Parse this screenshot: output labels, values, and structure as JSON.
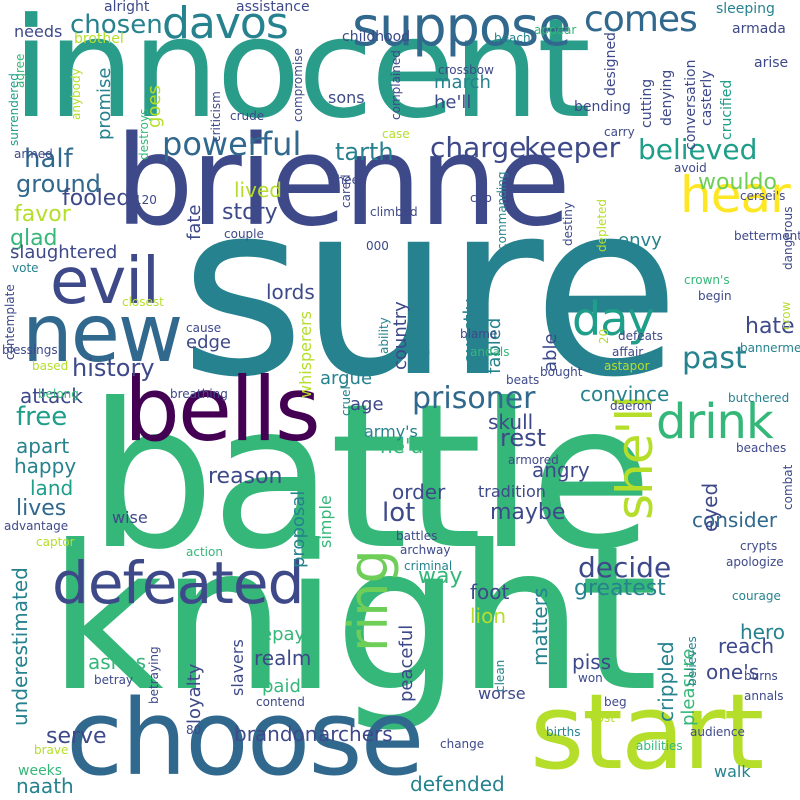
{
  "palette": {
    "dark_purple": "#440154",
    "indigo": "#3e4989",
    "steel_blue": "#31688e",
    "teal": "#26828e",
    "sea_green": "#1f9e89",
    "green": "#35b779",
    "lime": "#6ece58",
    "yellow_green": "#b5de2b",
    "yellow": "#fde725"
  },
  "words": [
    {
      "text": "sure",
      "color": "#26828e"
    },
    {
      "text": "battle",
      "color": "#35b779"
    },
    {
      "text": "knight",
      "color": "#35b779"
    },
    {
      "text": "innocent",
      "color": "#2a9d8a"
    },
    {
      "text": "brienne",
      "color": "#3e4989"
    },
    {
      "text": "choose",
      "color": "#31688e"
    },
    {
      "text": "start",
      "color": "#b5de2b"
    },
    {
      "text": "bells",
      "color": "#440154"
    },
    {
      "text": "defeated",
      "color": "#3e4989"
    },
    {
      "text": "new",
      "color": "#31688e"
    },
    {
      "text": "suppose",
      "color": "#31688e"
    },
    {
      "text": "evil",
      "color": "#3e4989"
    },
    {
      "text": "ring",
      "color": "#6ece58"
    },
    {
      "text": "davos",
      "color": "#26828e"
    },
    {
      "text": "hear",
      "color": "#fde725"
    },
    {
      "text": "drink",
      "color": "#35b779"
    },
    {
      "text": "she'll",
      "color": "#b5de2b"
    },
    {
      "text": "day",
      "color": "#1f9e89"
    },
    {
      "text": "comes",
      "color": "#31688e"
    },
    {
      "text": "powerful",
      "color": "#31688e"
    },
    {
      "text": "believed",
      "color": "#1f9e89"
    },
    {
      "text": "charge",
      "color": "#3e4989"
    },
    {
      "text": "keeper",
      "color": "#3e4989"
    },
    {
      "text": "prisoner",
      "color": "#31688e"
    },
    {
      "text": "past",
      "color": "#26828e"
    },
    {
      "text": "decide",
      "color": "#3e4989"
    },
    {
      "text": "history",
      "color": "#3e4989"
    },
    {
      "text": "half",
      "color": "#31688e"
    },
    {
      "text": "ground",
      "color": "#31688e"
    },
    {
      "text": "free",
      "color": "#1f9e89"
    },
    {
      "text": "chosen",
      "color": "#26828e"
    },
    {
      "text": "tarth",
      "color": "#26828e"
    },
    {
      "text": "story",
      "color": "#3e4989"
    },
    {
      "text": "lot",
      "color": "#3e4989"
    },
    {
      "text": "rest",
      "color": "#3e4989"
    },
    {
      "text": "hate",
      "color": "#3e4989"
    },
    {
      "text": "wouldo",
      "color": "#6ece58"
    },
    {
      "text": "favor",
      "color": "#b5de2b"
    },
    {
      "text": "glad",
      "color": "#35b779"
    },
    {
      "text": "fooled",
      "color": "#3e4989"
    },
    {
      "text": "reason",
      "color": "#3e4989"
    },
    {
      "text": "lives",
      "color": "#31688e"
    },
    {
      "text": "maybe",
      "color": "#3e4989"
    },
    {
      "text": "consider",
      "color": "#31688e"
    },
    {
      "text": "way",
      "color": "#35b779"
    },
    {
      "text": "greatest",
      "color": "#26828e"
    },
    {
      "text": "serve",
      "color": "#3e4989"
    },
    {
      "text": "brandon",
      "color": "#3e4989"
    },
    {
      "text": "archers",
      "color": "#3e4989"
    },
    {
      "text": "defended",
      "color": "#26828e"
    },
    {
      "text": "naath",
      "color": "#26828e"
    },
    {
      "text": "realm",
      "color": "#3e4989"
    },
    {
      "text": "piss",
      "color": "#3e4989"
    },
    {
      "text": "ashes",
      "color": "#35b779"
    },
    {
      "text": "underestimated",
      "color": "#26828e"
    },
    {
      "text": "matters",
      "color": "#26828e"
    },
    {
      "text": "crippled",
      "color": "#26828e"
    },
    {
      "text": "reach",
      "color": "#3e4989"
    },
    {
      "text": "hero",
      "color": "#26828e"
    },
    {
      "text": "one's",
      "color": "#3e4989"
    },
    {
      "text": "eyed",
      "color": "#3e4989"
    },
    {
      "text": "lion",
      "color": "#b5de2b"
    },
    {
      "text": "foot",
      "color": "#3e4989"
    },
    {
      "text": "attack",
      "color": "#3e4989"
    },
    {
      "text": "apart",
      "color": "#26828e"
    },
    {
      "text": "happy",
      "color": "#26828e"
    },
    {
      "text": "land",
      "color": "#1f9e89"
    },
    {
      "text": "convince",
      "color": "#26828e"
    },
    {
      "text": "angry",
      "color": "#3e4989"
    },
    {
      "text": "order",
      "color": "#3e4989"
    },
    {
      "text": "he'd",
      "color": "#35b779"
    },
    {
      "text": "skull",
      "color": "#3e4989"
    },
    {
      "text": "age",
      "color": "#3e4989"
    },
    {
      "text": "lords",
      "color": "#3e4989"
    },
    {
      "text": "edge",
      "color": "#3e4989"
    },
    {
      "text": "country",
      "color": "#3e4989"
    },
    {
      "text": "signal",
      "color": "#26828e"
    },
    {
      "text": "exactly",
      "color": "#26828e"
    },
    {
      "text": "fabled",
      "color": "#26828e"
    },
    {
      "text": "able",
      "color": "#3e4989"
    },
    {
      "text": "argue",
      "color": "#26828e"
    },
    {
      "text": "envy",
      "color": "#26828e"
    },
    {
      "text": "lived",
      "color": "#b5de2b"
    },
    {
      "text": "fate",
      "color": "#3e4989"
    },
    {
      "text": "goes",
      "color": "#b5de2b"
    },
    {
      "text": "promise",
      "color": "#26828e"
    },
    {
      "text": "march",
      "color": "#26828e"
    },
    {
      "text": "he'll",
      "color": "#3e4989"
    },
    {
      "text": "sons",
      "color": "#3e4989"
    },
    {
      "text": "slaughtered",
      "color": "#3e4989"
    },
    {
      "text": "repay",
      "color": "#35b779"
    },
    {
      "text": "paid",
      "color": "#35b779"
    },
    {
      "text": "loyalty",
      "color": "#3e4989"
    },
    {
      "text": "peaceful",
      "color": "#3e4989"
    },
    {
      "text": "pleasure",
      "color": "#35b779"
    },
    {
      "text": "worse",
      "color": "#3e4989"
    },
    {
      "text": "proposal",
      "color": "#26828e"
    },
    {
      "text": "simple",
      "color": "#35b779"
    },
    {
      "text": "army's",
      "color": "#26828e"
    },
    {
      "text": "tradition",
      "color": "#3e4989"
    },
    {
      "text": "whisperers",
      "color": "#b5de2b"
    },
    {
      "text": "walk",
      "color": "#26828e"
    },
    {
      "text": "weeks",
      "color": "#35b779"
    },
    {
      "text": "wise",
      "color": "#3e4989"
    },
    {
      "text": "slavers",
      "color": "#3e4989"
    },
    {
      "text": "needs",
      "color": "#3e4989"
    },
    {
      "text": "brothel",
      "color": "#b5de2b"
    },
    {
      "text": "alright",
      "color": "#3e4989"
    },
    {
      "text": "assistance",
      "color": "#3e4989"
    },
    {
      "text": "childhood",
      "color": "#3e4989"
    },
    {
      "text": "beach",
      "color": "#26828e"
    },
    {
      "text": "appear",
      "color": "#35b779"
    },
    {
      "text": "designed",
      "color": "#3e4989"
    },
    {
      "text": "cutting",
      "color": "#3e4989"
    },
    {
      "text": "sleeping",
      "color": "#26828e"
    },
    {
      "text": "armada",
      "color": "#3e4989"
    },
    {
      "text": "arise",
      "color": "#3e4989"
    },
    {
      "text": "crucified",
      "color": "#1f9e89"
    },
    {
      "text": "casterly",
      "color": "#3e4989"
    },
    {
      "text": "denying",
      "color": "#3e4989"
    },
    {
      "text": "conversation",
      "color": "#3e4989"
    },
    {
      "text": "bending",
      "color": "#3e4989"
    },
    {
      "text": "avoid",
      "color": "#3e4989"
    },
    {
      "text": "cersei's",
      "color": "#3e4989"
    },
    {
      "text": "dangerous",
      "color": "#3e4989"
    },
    {
      "text": "betterment",
      "color": "#3e4989"
    },
    {
      "text": "crow",
      "color": "#b5de2b"
    },
    {
      "text": "crown's",
      "color": "#35b779"
    },
    {
      "text": "begin",
      "color": "#3e4989"
    },
    {
      "text": "bannermen",
      "color": "#26828e"
    },
    {
      "text": "butchered",
      "color": "#26828e"
    },
    {
      "text": "beaches",
      "color": "#3e4989"
    },
    {
      "text": "combat",
      "color": "#3e4989"
    },
    {
      "text": "crypts",
      "color": "#3e4989"
    },
    {
      "text": "apologize",
      "color": "#3e4989"
    },
    {
      "text": "courage",
      "color": "#26828e"
    },
    {
      "text": "annals",
      "color": "#3e4989"
    },
    {
      "text": "burns",
      "color": "#3e4989"
    },
    {
      "text": "audience",
      "color": "#3e4989"
    },
    {
      "text": "abilities",
      "color": "#35b779"
    },
    {
      "text": "births",
      "color": "#26828e"
    },
    {
      "text": "cost",
      "color": "#b5de2b"
    },
    {
      "text": "beg",
      "color": "#3e4989"
    },
    {
      "text": "change",
      "color": "#3e4989"
    },
    {
      "text": "won",
      "color": "#3e4989"
    },
    {
      "text": "clean",
      "color": "#26828e"
    },
    {
      "text": "believes",
      "color": "#26828e"
    },
    {
      "text": "betraying",
      "color": "#3e4989"
    },
    {
      "text": "criminal",
      "color": "#26828e"
    },
    {
      "text": "archway",
      "color": "#3e4989"
    },
    {
      "text": "battles",
      "color": "#3e4989"
    },
    {
      "text": "action",
      "color": "#35b779"
    },
    {
      "text": "captor",
      "color": "#b5de2b"
    },
    {
      "text": "advantage",
      "color": "#3e4989"
    },
    {
      "text": "betray",
      "color": "#3e4989"
    },
    {
      "text": "contend",
      "color": "#3e4989"
    },
    {
      "text": "80",
      "color": "#3e4989"
    },
    {
      "text": "brave",
      "color": "#b5de2b"
    },
    {
      "text": "agree",
      "color": "#35b779"
    },
    {
      "text": "anybody",
      "color": "#b5de2b"
    },
    {
      "text": "surrendered",
      "color": "#1f9e89"
    },
    {
      "text": "armed",
      "color": "#3e4989"
    },
    {
      "text": "criticism",
      "color": "#3e4989"
    },
    {
      "text": "destroys",
      "color": "#35b779"
    },
    {
      "text": "compromise",
      "color": "#3e4989"
    },
    {
      "text": "crude",
      "color": "#3e4989"
    },
    {
      "text": "complained",
      "color": "#3e4989"
    },
    {
      "text": "crossbow",
      "color": "#3e4989"
    },
    {
      "text": "case",
      "color": "#b5de2b"
    },
    {
      "text": "carry",
      "color": "#3e4989"
    },
    {
      "text": "cheer",
      "color": "#3e4989"
    },
    {
      "text": "cared",
      "color": "#3e4989"
    },
    {
      "text": "climbed",
      "color": "#3e4989"
    },
    {
      "text": "cup",
      "color": "#3e4989"
    },
    {
      "text": "commanding",
      "color": "#26828e"
    },
    {
      "text": "destiny",
      "color": "#3e4989"
    },
    {
      "text": "depleted",
      "color": "#b5de2b"
    },
    {
      "text": "120",
      "color": "#3e4989"
    },
    {
      "text": "couple",
      "color": "#3e4989"
    },
    {
      "text": "000",
      "color": "#3e4989"
    },
    {
      "text": "vote",
      "color": "#26828e"
    },
    {
      "text": "contemplate",
      "color": "#3e4989"
    },
    {
      "text": "closest",
      "color": "#b5de2b"
    },
    {
      "text": "cause",
      "color": "#3e4989"
    },
    {
      "text": "based",
      "color": "#b5de2b"
    },
    {
      "text": "blessings",
      "color": "#3e4989"
    },
    {
      "text": "belong",
      "color": "#35b779"
    },
    {
      "text": "breathing",
      "color": "#3e4989"
    },
    {
      "text": "cruel",
      "color": "#26828e"
    },
    {
      "text": "ability",
      "color": "#26828e"
    },
    {
      "text": "blame",
      "color": "#3e4989"
    },
    {
      "text": "andals",
      "color": "#35b779"
    },
    {
      "text": "beats",
      "color": "#3e4989"
    },
    {
      "text": "bought",
      "color": "#3e4989"
    },
    {
      "text": "affair",
      "color": "#3e4989"
    },
    {
      "text": "defeats",
      "color": "#3e4989"
    },
    {
      "text": "20",
      "color": "#b5de2b"
    },
    {
      "text": "astapor",
      "color": "#b5de2b"
    },
    {
      "text": "daeron",
      "color": "#3e4989"
    },
    {
      "text": "armored",
      "color": "#3e4989"
    }
  ]
}
